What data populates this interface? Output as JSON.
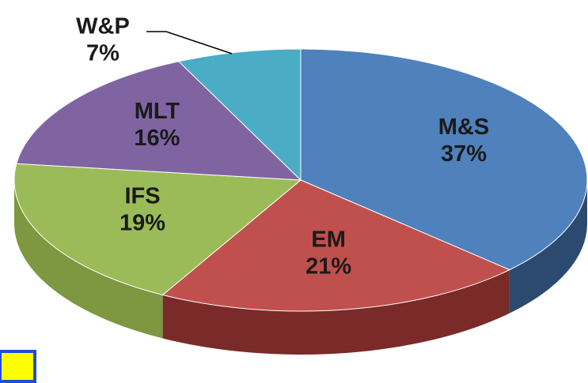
{
  "chart_data": {
    "type": "pie",
    "categories": [
      "M&S",
      "EM",
      "IFS",
      "MLT",
      "W&P"
    ],
    "values": [
      37,
      21,
      19,
      16,
      7
    ],
    "value_labels": [
      "37%",
      "21%",
      "19%",
      "16%",
      "7%"
    ],
    "colors": [
      "#4f81bd",
      "#c0504d",
      "#9bbb59",
      "#8064a2",
      "#4bacc6"
    ],
    "side_colors": [
      "#2c4a70",
      "#7a2a28",
      "#7d9840",
      "#5c4680",
      "#31869b"
    ]
  }
}
